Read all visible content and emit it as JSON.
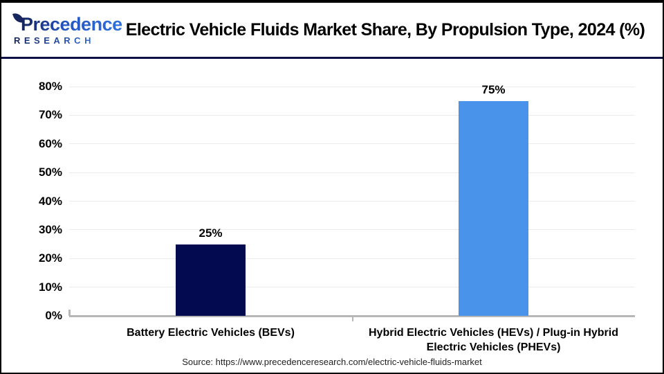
{
  "header": {
    "logo": {
      "line1": "Precedence",
      "line2": "RESEARCH"
    },
    "title": "Electric Vehicle Fluids Market Share, By Propulsion Type, 2024 (%)"
  },
  "chart_data": {
    "type": "bar",
    "title": "Electric Vehicle Fluids Market Share, By Propulsion Type, 2024 (%)",
    "categories": [
      "Battery Electric Vehicles (BEVs)",
      "Hybrid Electric Vehicles (HEVs) / Plug-in Hybrid Electric Vehicles (PHEVs)"
    ],
    "values": [
      25,
      75
    ],
    "data_labels": [
      "25%",
      "75%"
    ],
    "bar_colors": [
      "#030a4f",
      "#4a93ea"
    ],
    "ylim": [
      0,
      80
    ],
    "ytick_values": [
      0,
      10,
      20,
      30,
      40,
      50,
      60,
      70,
      80
    ],
    "ytick_labels": [
      "0%",
      "10%",
      "20%",
      "30%",
      "40%",
      "50%",
      "60%",
      "70%",
      "80%"
    ],
    "grid": true,
    "legend_position": "none",
    "xlabel": "",
    "ylabel": ""
  },
  "footer": {
    "source": "Source: https://www.precedenceresearch.com/electric-vehicle-fluids-market"
  },
  "colors": {
    "bev_bar": "#030a4f",
    "hev_phev_bar": "#4a93ea",
    "header_rule": "#0e1145",
    "axis_line": "#b7b7b7",
    "gridline": "#ebebeb"
  }
}
